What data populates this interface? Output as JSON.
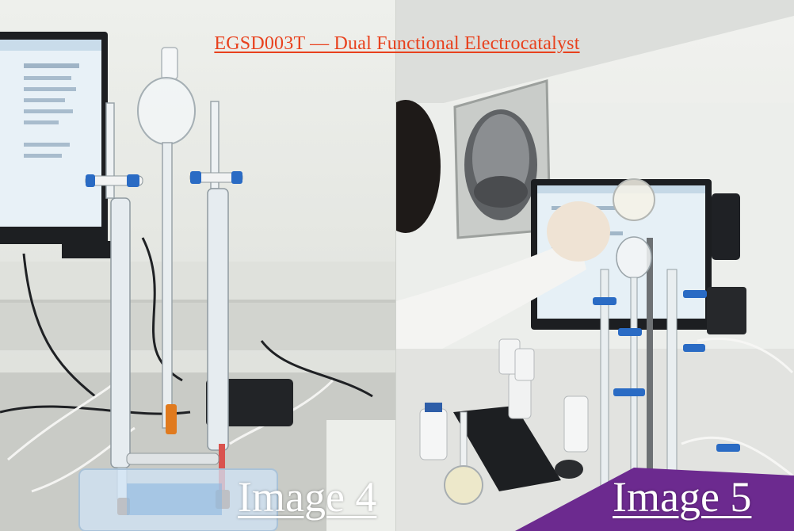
{
  "title": "EGSD003T — Dual Functional Electrocatalyst",
  "panels": [
    {
      "label": "Image 4"
    },
    {
      "label": "Image 5"
    }
  ],
  "colors": {
    "title": "#e8411d",
    "label": "#ffffff",
    "clamp_blue": "#2a6bc4"
  }
}
